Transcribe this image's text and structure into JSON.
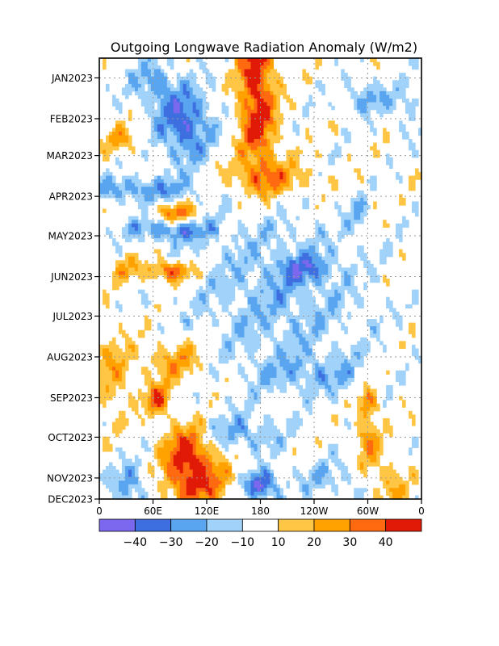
{
  "chart_data": {
    "type": "heatmap",
    "title": "Outgoing Longwave Radiation Anomaly (W/m2)",
    "xlabel": "",
    "ylabel": "",
    "x_ticks": [
      {
        "lon": 0,
        "label": "0"
      },
      {
        "lon": 60,
        "label": "60E"
      },
      {
        "lon": 120,
        "label": "120E"
      },
      {
        "lon": 180,
        "label": "180"
      },
      {
        "lon": 240,
        "label": "120W"
      },
      {
        "lon": 300,
        "label": "60W"
      },
      {
        "lon": 360,
        "label": "0"
      }
    ],
    "y_ticks": [
      {
        "day": 15,
        "label": "JAN2023"
      },
      {
        "day": 46,
        "label": "FEB2023"
      },
      {
        "day": 74,
        "label": "MAR2023"
      },
      {
        "day": 105,
        "label": "APR2023"
      },
      {
        "day": 135,
        "label": "MAY2023"
      },
      {
        "day": 166,
        "label": "JUN2023"
      },
      {
        "day": 196,
        "label": "JUL2023"
      },
      {
        "day": 227,
        "label": "AUG2023"
      },
      {
        "day": 258,
        "label": "SEP2023"
      },
      {
        "day": 288,
        "label": "OCT2023"
      },
      {
        "day": 319,
        "label": "NOV2023"
      },
      {
        "day": 335,
        "label": "DEC2023"
      }
    ],
    "xlim": [
      0,
      360
    ],
    "ylim": [
      0,
      335
    ],
    "grid": true,
    "colorbar": {
      "levels": [
        -40,
        -30,
        -20,
        -10,
        10,
        20,
        30,
        40
      ],
      "labels": [
        "-40",
        "-30",
        "-20",
        "-10",
        "10",
        "20",
        "30",
        "40"
      ],
      "colors": [
        "#7b68ee",
        "#3e6fe0",
        "#5aa5ef",
        "#a0d2fa",
        "#ffffff",
        "#ffc544",
        "#ffa200",
        "#ff6a10",
        "#e11a08"
      ]
    },
    "blobs": [
      {
        "lon": 175,
        "day": 10,
        "slon": 14,
        "sday": 30,
        "amp": 45
      },
      {
        "lon": 178,
        "day": 60,
        "slon": 16,
        "sday": 22,
        "amp": 28
      },
      {
        "lon": 190,
        "day": 92,
        "slon": 36,
        "sday": 10,
        "amp": 28
      },
      {
        "lon": 95,
        "day": 50,
        "slon": 22,
        "sday": 20,
        "amp": -38
      },
      {
        "lon": 60,
        "day": 18,
        "slon": 18,
        "sday": 12,
        "amp": -24
      },
      {
        "lon": 45,
        "day": 100,
        "slon": 50,
        "sday": 7,
        "amp": -26
      },
      {
        "lon": 80,
        "day": 130,
        "slon": 35,
        "sday": 7,
        "amp": -30
      },
      {
        "lon": 85,
        "day": 118,
        "slon": 18,
        "sday": 6,
        "amp": 38
      },
      {
        "lon": 80,
        "day": 162,
        "slon": 18,
        "sday": 6,
        "amp": 40
      },
      {
        "lon": 30,
        "day": 160,
        "slon": 12,
        "sday": 7,
        "amp": 20
      },
      {
        "lon": 25,
        "day": 62,
        "slon": 15,
        "sday": 8,
        "amp": 20
      },
      {
        "lon": 15,
        "day": 240,
        "slon": 14,
        "sday": 22,
        "amp": 20
      },
      {
        "lon": 65,
        "day": 260,
        "slon": 10,
        "sday": 8,
        "amp": 40
      },
      {
        "lon": 85,
        "day": 230,
        "slon": 25,
        "sday": 12,
        "amp": 24
      },
      {
        "lon": 100,
        "day": 300,
        "slon": 18,
        "sday": 15,
        "amp": 46
      },
      {
        "lon": 110,
        "day": 325,
        "slon": 30,
        "sday": 14,
        "amp": 32
      },
      {
        "lon": 180,
        "day": 325,
        "slon": 14,
        "sday": 8,
        "amp": -45
      },
      {
        "lon": 160,
        "day": 285,
        "slon": 30,
        "sday": 10,
        "amp": -22
      },
      {
        "lon": 35,
        "day": 325,
        "slon": 15,
        "sday": 12,
        "amp": -28
      },
      {
        "lon": 200,
        "day": 180,
        "slon": 70,
        "sday": 45,
        "amp": -18
      },
      {
        "lon": 230,
        "day": 160,
        "slon": 20,
        "sday": 7,
        "amp": -22
      },
      {
        "lon": 300,
        "day": 30,
        "slon": 20,
        "sday": 8,
        "amp": -24
      },
      {
        "lon": 345,
        "day": 40,
        "slon": 10,
        "sday": 12,
        "amp": -16
      },
      {
        "lon": 300,
        "day": 290,
        "slon": 10,
        "sday": 18,
        "amp": 26
      },
      {
        "lon": 300,
        "day": 260,
        "slon": 8,
        "sday": 8,
        "amp": 26
      },
      {
        "lon": 325,
        "day": 325,
        "slon": 14,
        "sday": 14,
        "amp": 22
      },
      {
        "lon": 240,
        "day": 240,
        "slon": 45,
        "sday": 10,
        "amp": -16
      },
      {
        "lon": 290,
        "day": 120,
        "slon": 8,
        "sday": 10,
        "amp": -16
      },
      {
        "lon": 260,
        "day": 320,
        "slon": 35,
        "sday": 12,
        "amp": -14
      }
    ]
  }
}
